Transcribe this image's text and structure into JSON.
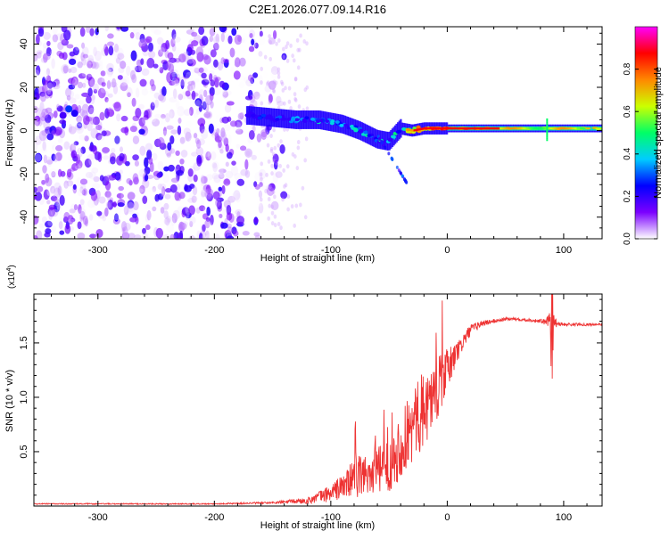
{
  "title": "C2E1.2026.077.09.14.R16",
  "colors": {
    "snr_line": "#ee3333",
    "frame": "#000000",
    "background": "#ffffff"
  },
  "chart_data": [
    {
      "type": "heatmap",
      "panel": "spectrogram",
      "xlabel": "Height of straight line (km)",
      "ylabel": "Frequency (Hz)",
      "xlim": [
        -355,
        133
      ],
      "ylim": [
        -50,
        48
      ],
      "xticks": [
        -300,
        -200,
        -100,
        0,
        100
      ],
      "xtick_labels": [
        "-300",
        "-200",
        "-100",
        "0",
        "100"
      ],
      "yticks": [
        -40,
        -20,
        0,
        20,
        40
      ],
      "ytick_labels": [
        "-40",
        "-20",
        "0",
        "20",
        "40"
      ],
      "noise_region_x": [
        -355,
        -140
      ],
      "signal_track": {
        "x": [
          -170,
          -150,
          -130,
          -110,
          -90,
          -75,
          -60,
          -50,
          -40,
          -30,
          -20,
          -10,
          0,
          20,
          40,
          60,
          80,
          100,
          133
        ],
        "freq": [
          7,
          6,
          5,
          5,
          3,
          0,
          -4,
          -5,
          1,
          0,
          1,
          1,
          1,
          1,
          1,
          1,
          1,
          1,
          1
        ],
        "amplitude": [
          0.3,
          0.35,
          0.4,
          0.45,
          0.45,
          0.45,
          0.5,
          0.4,
          0.6,
          0.85,
          0.85,
          0.9,
          0.95,
          0.9,
          0.85,
          0.8,
          0.85,
          0.8,
          0.75
        ]
      },
      "colorbar": {
        "label": "Normalized spectral amplitude",
        "range": [
          0,
          1
        ],
        "ticks": [
          0.0,
          0.2,
          0.4,
          0.6,
          0.8
        ],
        "tick_labels": [
          "0.0",
          "0.2",
          "0.4",
          "0.6",
          "0.8"
        ],
        "colormap": [
          "#ffffff",
          "#7b00ff",
          "#0000ff",
          "#00ccff",
          "#00ff66",
          "#ccff00",
          "#ff8800",
          "#ff0000",
          "#ff00ff"
        ]
      }
    },
    {
      "type": "line",
      "panel": "snr",
      "xlabel": "Height of straight line (km)",
      "ylabel": "SNR (10 * v/v)",
      "y_multiplier": "(x10",
      "y_multiplier_exp": "4",
      "y_multiplier_close": ")",
      "xlim": [
        -355,
        133
      ],
      "ylim": [
        0,
        1.95
      ],
      "xticks": [
        -300,
        -200,
        -100,
        0,
        100
      ],
      "xtick_labels": [
        "-300",
        "-200",
        "-100",
        "0",
        "100"
      ],
      "yticks": [
        0.5,
        1.0,
        1.5
      ],
      "ytick_labels": [
        "0.5",
        "1.0",
        "1.5"
      ],
      "series": [
        {
          "name": "SNR",
          "x": [
            -355,
            -200,
            -150,
            -120,
            -100,
            -90,
            -80,
            -70,
            -60,
            -50,
            -40,
            -30,
            -20,
            -10,
            0,
            10,
            20,
            30,
            40,
            50,
            60,
            70,
            80,
            85,
            90,
            95,
            100,
            133
          ],
          "y": [
            0.02,
            0.02,
            0.03,
            0.05,
            0.12,
            0.18,
            0.25,
            0.3,
            0.32,
            0.38,
            0.55,
            0.72,
            0.9,
            1.05,
            1.25,
            1.45,
            1.62,
            1.68,
            1.7,
            1.72,
            1.72,
            1.71,
            1.7,
            1.69,
            1.72,
            1.68,
            1.67,
            1.67
          ],
          "spread": [
            0.005,
            0.005,
            0.01,
            0.03,
            0.08,
            0.12,
            0.18,
            0.2,
            0.22,
            0.25,
            0.3,
            0.35,
            0.35,
            0.3,
            0.2,
            0.1,
            0.05,
            0.03,
            0.02,
            0.015,
            0.015,
            0.015,
            0.02,
            0.03,
            0.1,
            0.03,
            0.015,
            0.01
          ]
        }
      ]
    }
  ]
}
